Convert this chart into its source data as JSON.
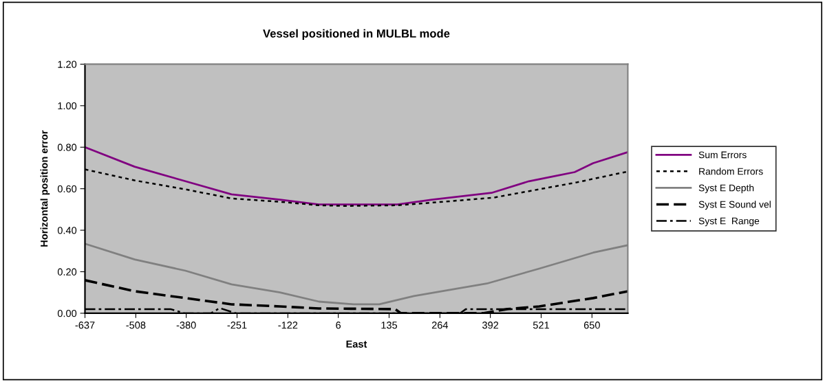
{
  "chart_data": {
    "type": "line",
    "title": "Vessel positioned in MULBL mode",
    "xlabel": "East",
    "ylabel": "Horizontal position error",
    "xlim": [
      -637,
      741
    ],
    "ylim": [
      0,
      1.2
    ],
    "xticks": [
      -637,
      -508,
      -380,
      -251,
      -122,
      6,
      135,
      264,
      392,
      521,
      650
    ],
    "yticks": [
      {
        "value": 0,
        "label": "0.00"
      },
      {
        "value": 0.2,
        "label": "0.20"
      },
      {
        "value": 0.4,
        "label": "0.40"
      },
      {
        "value": 0.6,
        "label": "0.60"
      },
      {
        "value": 0.8,
        "label": "0.80"
      },
      {
        "value": 1.0,
        "label": "1.00"
      },
      {
        "value": 1.2,
        "label": "1.20"
      }
    ],
    "grid": false,
    "legend": "right",
    "marker": "none",
    "series": [
      {
        "name": "Sum Errors",
        "color": "#800080",
        "line_style": "solid",
        "x": [
          -637,
          -511,
          -382,
          -265,
          -142,
          -43,
          21,
          156,
          244,
          395,
          490,
          606,
          653,
          741
        ],
        "values": [
          0.8,
          0.706,
          0.636,
          0.573,
          0.547,
          0.524,
          0.524,
          0.524,
          0.547,
          0.58,
          0.636,
          0.68,
          0.723,
          0.776
        ]
      },
      {
        "name": "Random Errors",
        "color": "#000000",
        "line_style": "dotted",
        "x": [
          -637,
          -511,
          -382,
          -265,
          -142,
          -43,
          21,
          156,
          272,
          400,
          495,
          610,
          741
        ],
        "values": [
          0.693,
          0.64,
          0.597,
          0.553,
          0.537,
          0.52,
          0.517,
          0.52,
          0.537,
          0.557,
          0.59,
          0.63,
          0.683
        ]
      },
      {
        "name": "Syst E Depth",
        "color": "#808080",
        "line_style": "solid",
        "x": [
          -637,
          -511,
          -382,
          -265,
          -142,
          -43,
          45,
          110,
          198,
          383,
          516,
          653,
          741
        ],
        "values": [
          0.335,
          0.259,
          0.205,
          0.139,
          0.1,
          0.056,
          0.043,
          0.043,
          0.083,
          0.143,
          0.215,
          0.292,
          0.328
        ]
      },
      {
        "name": "Syst E Sound vel",
        "color": "#000000",
        "line_style": "dashed",
        "x": [
          -637,
          -511,
          -382,
          -265,
          -142,
          -43,
          150,
          165,
          373,
          435,
          516,
          653,
          741
        ],
        "values": [
          0.159,
          0.106,
          0.073,
          0.043,
          0.033,
          0.023,
          0.02,
          0.0,
          0.0,
          0.02,
          0.033,
          0.073,
          0.106
        ]
      },
      {
        "name": "Syst E  Range",
        "color": "#000000",
        "line_style": "dashdot",
        "x": [
          -637,
          -420,
          -385,
          -317,
          -295,
          -254,
          315,
          330,
          741
        ],
        "values": [
          0.02,
          0.02,
          0.0,
          0.0,
          0.025,
          0.0,
          0.0,
          0.02,
          0.02
        ]
      }
    ]
  }
}
